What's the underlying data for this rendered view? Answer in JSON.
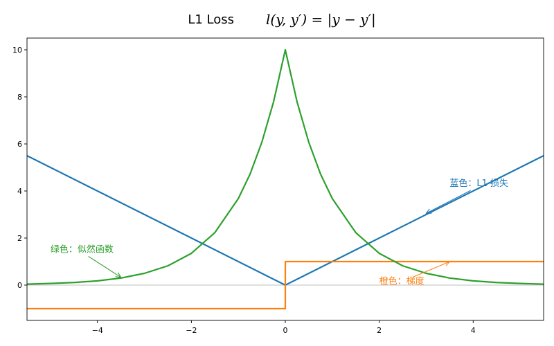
{
  "chart_data": {
    "type": "line",
    "title": "L1  Loss",
    "title_formula": "l(y, y′) = |y − y′|",
    "xlabel": "",
    "ylabel": "",
    "xlim": [
      -5.5,
      5.5
    ],
    "ylim": [
      -1.5,
      10.5
    ],
    "x_ticks": [
      -4,
      -2,
      0,
      2,
      4
    ],
    "y_ticks": [
      0,
      2,
      4,
      6,
      8,
      10
    ],
    "grid": false,
    "colors": {
      "loss": "#1f77b4",
      "gradient": "#ff7f0e",
      "likelihood": "#2ca02c",
      "baseline": "#aaaaaa",
      "axes": "#000000"
    },
    "series": [
      {
        "key": "loss",
        "x": [
          -5.5,
          0,
          5.5
        ],
        "y": [
          5.5,
          0,
          5.5
        ]
      },
      {
        "key": "gradient",
        "x": [
          -5.5,
          0,
          0,
          5.5
        ],
        "y": [
          -1,
          -1,
          1,
          1
        ]
      },
      {
        "key": "likelihood",
        "x": [
          -5.5,
          -5,
          -4.5,
          -4,
          -3.5,
          -3,
          -2.5,
          -2,
          -1.5,
          -1,
          -0.75,
          -0.5,
          -0.25,
          0,
          0.25,
          0.5,
          0.75,
          1,
          1.5,
          2,
          2.5,
          3,
          3.5,
          4,
          4.5,
          5,
          5.5
        ],
        "y": [
          0.04,
          0.07,
          0.11,
          0.18,
          0.3,
          0.5,
          0.82,
          1.35,
          2.23,
          3.68,
          4.72,
          6.07,
          7.79,
          10.0,
          7.79,
          6.07,
          4.72,
          3.68,
          2.23,
          1.35,
          0.82,
          0.5,
          0.3,
          0.18,
          0.11,
          0.07,
          0.04
        ]
      }
    ],
    "baseline_y": 0,
    "annotations": [
      {
        "text": "蓝色：L1 损失",
        "color_key": "loss",
        "text_xy": [
          3.5,
          4.2
        ],
        "arrow_to": [
          3.0,
          3.05
        ]
      },
      {
        "text": "绿色：似然函数",
        "color_key": "likelihood",
        "text_xy": [
          -5.0,
          1.4
        ],
        "arrow_to": [
          -3.5,
          0.33
        ]
      },
      {
        "text": "橙色：梯度",
        "color_key": "gradient",
        "text_xy": [
          2.0,
          0.05
        ],
        "arrow_to": [
          3.5,
          1.0
        ]
      }
    ]
  }
}
